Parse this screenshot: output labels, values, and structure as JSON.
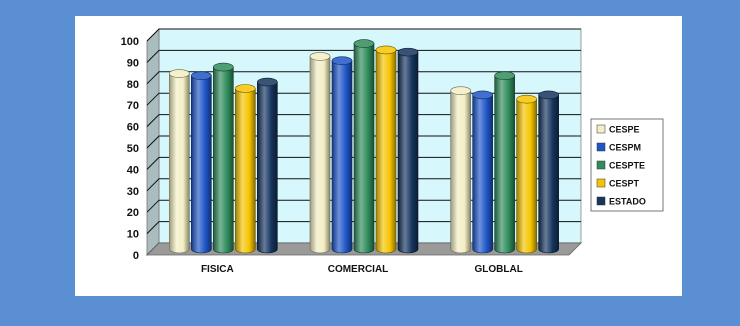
{
  "colors": {
    "page_background": "#5b8fd4",
    "panel_background": "#ffffff",
    "plot_background": "#d6f7fb",
    "floor": "#9a9a9a"
  },
  "chart_data": {
    "type": "bar",
    "style": "3d-cylinder",
    "title": "",
    "xlabel": "",
    "ylabel": "",
    "categories": [
      "FISICA",
      "COMERCIAL",
      "GLOBLAL"
    ],
    "ylim": [
      0,
      100
    ],
    "yticks": [
      0,
      10,
      20,
      30,
      40,
      50,
      60,
      70,
      80,
      90,
      100
    ],
    "grid": true,
    "legend_position": "right",
    "series": [
      {
        "name": "CESPE",
        "color": "#f3eec3",
        "values": [
          82,
          90,
          74
        ]
      },
      {
        "name": "CESPM",
        "color": "#1e56c8",
        "values": [
          81,
          88,
          72
        ]
      },
      {
        "name": "CESPTE",
        "color": "#2f8c5c",
        "values": [
          85,
          96,
          81
        ]
      },
      {
        "name": "CESPT",
        "color": "#f5c400",
        "values": [
          75,
          93,
          70
        ]
      },
      {
        "name": "ESTADO",
        "color": "#16355f",
        "values": [
          78,
          92,
          72
        ]
      }
    ]
  }
}
